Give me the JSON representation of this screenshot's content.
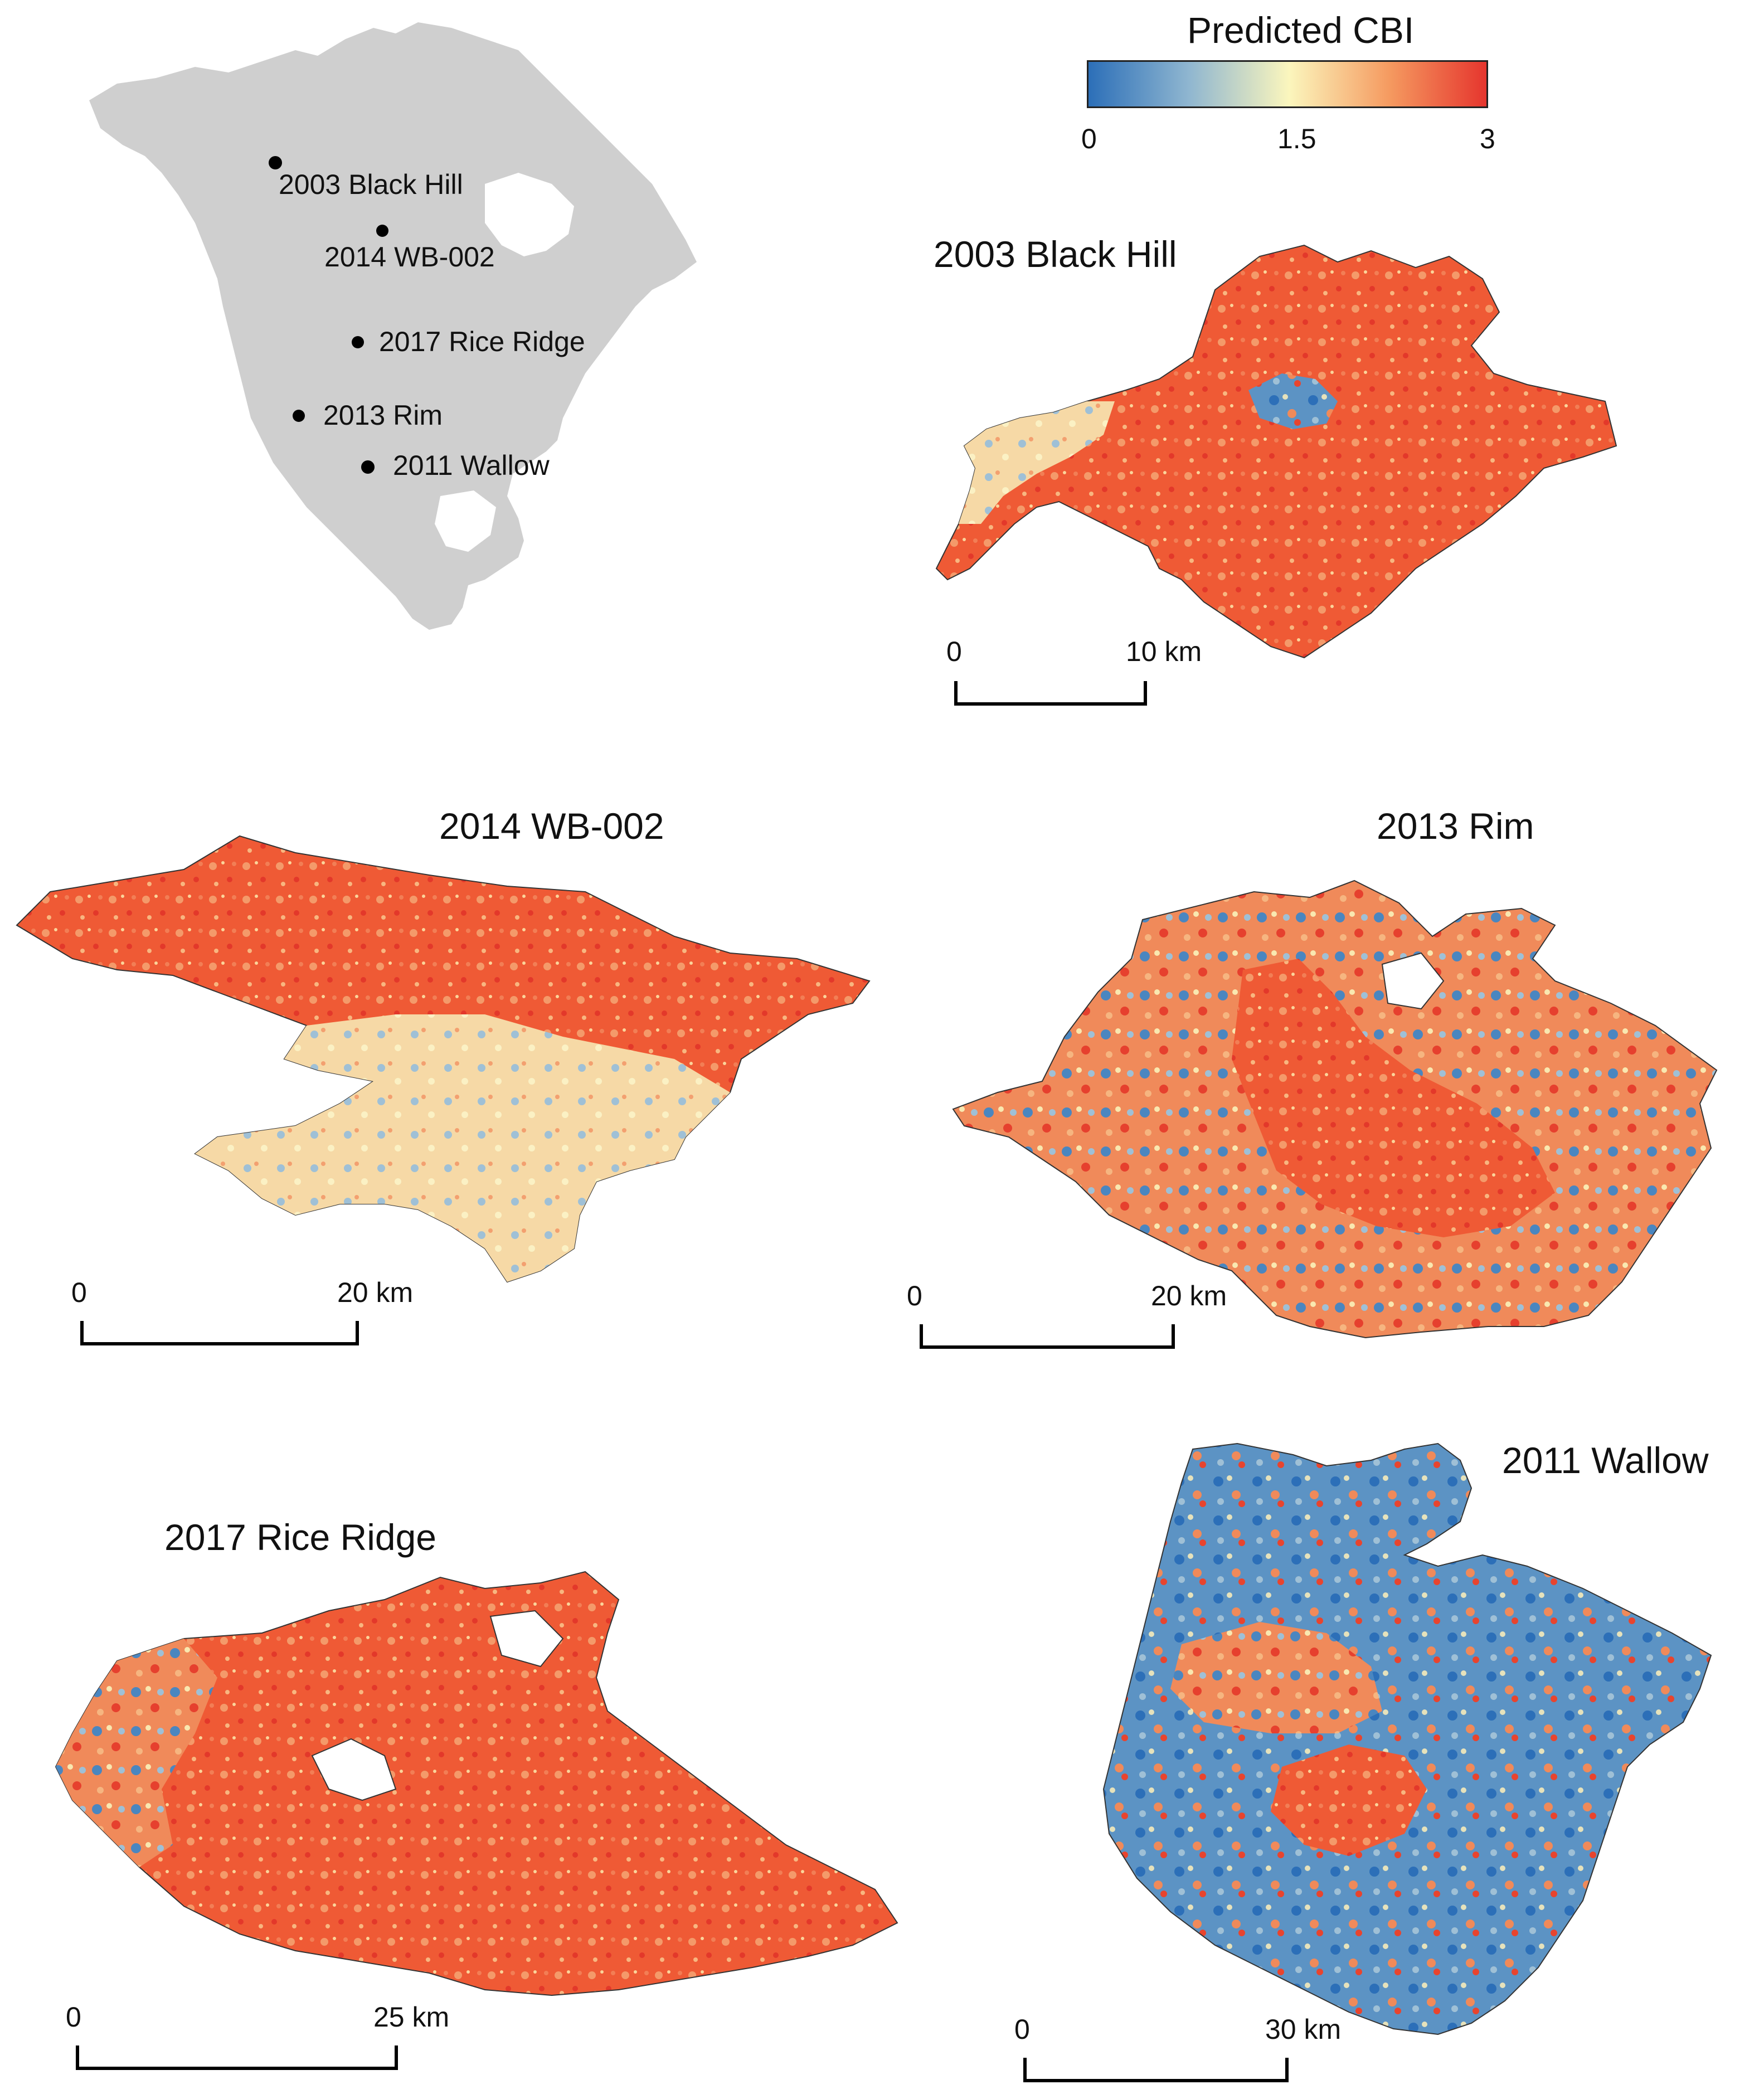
{
  "legend": {
    "title": "Predicted CBI",
    "ticks": [
      "0",
      "1.5",
      "3"
    ],
    "range": [
      0,
      3
    ],
    "colors": [
      "#2c6fb8",
      "#8fb6d0",
      "#fbf6bd",
      "#f59a60",
      "#e5322c"
    ]
  },
  "locator_map": {
    "land_color": "#cfcfcf",
    "sites": [
      {
        "label": "2003 Black Hill"
      },
      {
        "label": "2014 WB-002"
      },
      {
        "label": "2017 Rice Ridge"
      },
      {
        "label": "2013 Rim"
      },
      {
        "label": "2011 Wallow"
      }
    ]
  },
  "fires": [
    {
      "name": "2003 Black Hill",
      "scale": {
        "start": "0",
        "end": "10",
        "unit": "km"
      }
    },
    {
      "name": "2014 WB-002",
      "scale": {
        "start": "0",
        "end": "20",
        "unit": "km"
      }
    },
    {
      "name": "2013 Rim",
      "scale": {
        "start": "0",
        "end": "20",
        "unit": "km"
      }
    },
    {
      "name": "2017 Rice Ridge",
      "scale": {
        "start": "0",
        "end": "25",
        "unit": "km"
      }
    },
    {
      "name": "2011 Wallow",
      "scale": {
        "start": "0",
        "end": "30",
        "unit": "km"
      }
    }
  ]
}
